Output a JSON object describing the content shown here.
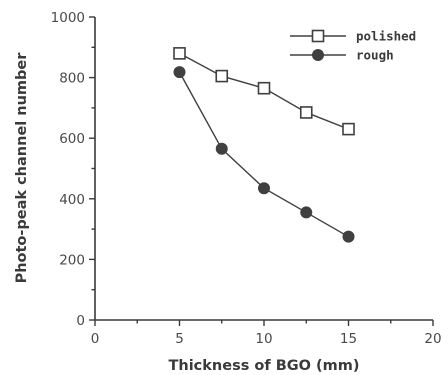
{
  "chart_data": {
    "type": "line",
    "title": "",
    "xlabel": "Thickness of BGO (mm)",
    "ylabel": "Photo-peak channel number",
    "xlim": [
      0,
      20
    ],
    "ylim": [
      0,
      1000
    ],
    "xticks": [
      0,
      5,
      10,
      15,
      20
    ],
    "yticks": [
      0,
      200,
      400,
      600,
      800,
      1000
    ],
    "x_tick_labels": [
      "0",
      "5",
      "10",
      "15",
      "20"
    ],
    "y_tick_labels": [
      "0",
      "200",
      "400",
      "600",
      "800",
      "1000"
    ],
    "grid": false,
    "legend_position": "top-right",
    "series": [
      {
        "name": "polished",
        "marker": "open-square",
        "color": "#404040",
        "x": [
          5,
          7.5,
          10,
          12.5,
          15
        ],
        "y": [
          880,
          805,
          765,
          685,
          630
        ]
      },
      {
        "name": "rough",
        "marker": "filled-circle",
        "color": "#404040",
        "x": [
          5,
          7.5,
          10,
          12.5,
          15
        ],
        "y": [
          818,
          565,
          435,
          355,
          275
        ]
      }
    ]
  }
}
